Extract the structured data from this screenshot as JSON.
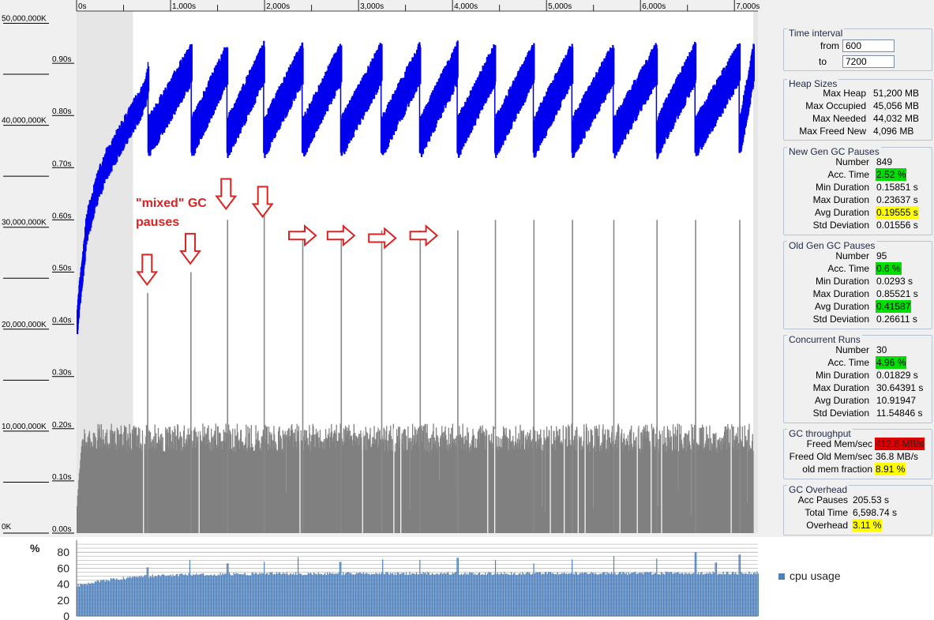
{
  "chart_data": [
    {
      "type": "area",
      "title": "",
      "x_ticks": [
        "0s",
        "1,000s",
        "2,000s",
        "3,000s",
        "4,000s",
        "5,000s",
        "6,000s",
        "7,000s"
      ],
      "x_tick_values": [
        0,
        1000,
        2000,
        3000,
        4000,
        5000,
        6000,
        7000
      ],
      "x_range": [
        0,
        7250
      ],
      "left_axis": {
        "labels": [
          "50,000,000K",
          "40,000,000K",
          "30,000,000K",
          "20,000,000K",
          "10,000,000K",
          "0K"
        ],
        "values": [
          50000000,
          40000000,
          30000000,
          20000000,
          10000000,
          0
        ]
      },
      "pause_axis": {
        "labels": [
          "0.90s",
          "0.80s",
          "0.70s",
          "0.60s",
          "0.50s",
          "0.40s",
          "0.30s",
          "0.20s",
          "0.10s",
          "0.00s"
        ],
        "values": [
          0.9,
          0.8,
          0.7,
          0.6,
          0.5,
          0.4,
          0.3,
          0.2,
          0.1,
          0
        ]
      },
      "time_interval_shading": {
        "from": 600,
        "to": 7200
      },
      "series": [
        {
          "name": "heap used (sawtooth)",
          "color": "#0000ee",
          "range": [
            0,
            51200000
          ],
          "peak_value": 46200000,
          "trough_value": 38800000,
          "ramp_points": [
            [
              0,
              21000000
            ],
            [
              100,
              30000000
            ],
            [
              200,
              33500000
            ],
            [
              300,
              36000000
            ],
            [
              450,
              38500000
            ],
            [
              600,
              41000000
            ],
            [
              700,
              42500000
            ],
            [
              760,
              44500000
            ]
          ],
          "cycle_troughs_s": [
            760,
            1220,
            1600,
            1990,
            2400,
            2810,
            3240,
            3650,
            4050,
            4450,
            4860,
            5270,
            5710,
            6170,
            6580,
            7050
          ],
          "end_s": 7200
        },
        {
          "name": "gc pause durations",
          "color": "#808080",
          "range": [
            0,
            0.9
          ],
          "base_level_s": 0.19,
          "ramp_start_s": 0.05
        },
        {
          "name": "old gen gc pauses",
          "color": "#808080",
          "x": [
            750,
            1210,
            1600,
            1990,
            2400,
            2810,
            3240,
            3650,
            4050,
            4450,
            4860,
            5270,
            5710,
            6170,
            6580,
            7050
          ],
          "values": [
            0.46,
            0.5,
            0.6,
            0.61,
            0.58,
            0.58,
            0.58,
            0.58,
            0.58,
            0.6,
            0.6,
            0.6,
            0.6,
            0.6,
            0.6,
            0.6
          ]
        }
      ],
      "annotations": [
        {
          "text": "\"mixed\" GC\npauses",
          "color": "#dd2222"
        },
        {
          "symbol": "down-arrow",
          "x": 750,
          "y": 0.47,
          "color": "#dd2222"
        },
        {
          "symbol": "down-arrow",
          "x": 1210,
          "y": 0.51,
          "color": "#dd2222"
        },
        {
          "symbol": "down-arrow",
          "x": 1590,
          "y": 0.615,
          "color": "#dd2222"
        },
        {
          "symbol": "down-arrow",
          "x": 1980,
          "y": 0.6,
          "color": "#dd2222"
        },
        {
          "symbol": "right-arrow",
          "x": 2260,
          "y": 0.57,
          "color": "#dd2222"
        },
        {
          "symbol": "right-arrow",
          "x": 2670,
          "y": 0.57,
          "color": "#dd2222"
        },
        {
          "symbol": "right-arrow",
          "x": 3110,
          "y": 0.565,
          "color": "#dd2222"
        },
        {
          "symbol": "right-arrow",
          "x": 3550,
          "y": 0.57,
          "color": "#dd2222"
        }
      ]
    },
    {
      "type": "bar",
      "title": "",
      "ylabel": "%",
      "y_ticks": [
        0,
        20,
        40,
        60,
        80
      ],
      "ylim": [
        0,
        95
      ],
      "legend": "cpu usage",
      "color": "#4f81bd",
      "x_range": [
        0,
        7250
      ],
      "base_points": [
        [
          0,
          38
        ],
        [
          300,
          45
        ],
        [
          700,
          50
        ],
        [
          1200,
          52
        ],
        [
          2000,
          53
        ],
        [
          7250,
          54
        ]
      ],
      "spikes": [
        [
          750,
          61
        ],
        [
          1200,
          70
        ],
        [
          1600,
          66
        ],
        [
          1990,
          68
        ],
        [
          2350,
          74
        ],
        [
          2800,
          68
        ],
        [
          3250,
          71
        ],
        [
          3650,
          70
        ],
        [
          4050,
          73
        ],
        [
          4450,
          70
        ],
        [
          4860,
          66
        ],
        [
          5270,
          71
        ],
        [
          5710,
          75
        ],
        [
          6170,
          72
        ],
        [
          6580,
          80
        ],
        [
          6800,
          67
        ],
        [
          7050,
          77
        ]
      ]
    }
  ],
  "side_panel": {
    "time_interval": {
      "title": "Time interval",
      "from_label": "from",
      "from_value": "600",
      "to_label": "to",
      "to_value": "7200"
    },
    "heap_sizes": {
      "title": "Heap Sizes",
      "rows": [
        {
          "label": "Max Heap",
          "value": "51,200 MB"
        },
        {
          "label": "Max Occupied",
          "value": "45,056 MB"
        },
        {
          "label": "Max Needed",
          "value": "44,032 MB"
        },
        {
          "label": "Max Freed New",
          "value": "4,096 MB"
        }
      ]
    },
    "new_gen": {
      "title": "New Gen GC Pauses",
      "rows": [
        {
          "label": "Number",
          "value": "849"
        },
        {
          "label": "Acc. Time",
          "value": "2.52 %",
          "highlight": "green"
        },
        {
          "label": "Min Duration",
          "value": "0.15851 s"
        },
        {
          "label": "Max Duration",
          "value": "0.23637 s"
        },
        {
          "label": "Avg Duration",
          "value": "0.19555 s",
          "highlight": "yellow"
        },
        {
          "label": "Std Deviation",
          "value": "0.01556 s"
        }
      ]
    },
    "old_gen": {
      "title": "Old Gen GC Pauses",
      "rows": [
        {
          "label": "Number",
          "value": "95"
        },
        {
          "label": "Acc. Time",
          "value": "0.6 %",
          "highlight": "green"
        },
        {
          "label": "Min Duration",
          "value": "0.0293 s"
        },
        {
          "label": "Max Duration",
          "value": "0.85521 s"
        },
        {
          "label": "Avg Duration",
          "value": "0.41587",
          "highlight": "green"
        },
        {
          "label": "Std Deviation",
          "value": "0.26611 s"
        }
      ]
    },
    "concurrent": {
      "title": "Concurrent Runs",
      "rows": [
        {
          "label": "Number",
          "value": "30"
        },
        {
          "label": "Acc. Time",
          "value": "4.96 %",
          "highlight": "green"
        },
        {
          "label": "Min Duration",
          "value": "0.01829 s"
        },
        {
          "label": "Max Duration",
          "value": "30.64391 s"
        },
        {
          "label": "Avg Duration",
          "value": "10.91947"
        },
        {
          "label": "Std Deviation",
          "value": "11.54846 s"
        }
      ]
    },
    "throughput": {
      "title": "GC throughput",
      "rows": [
        {
          "label": "Freed Mem/sec",
          "value": "412.8 MB/s",
          "highlight": "red"
        },
        {
          "label": "Freed Old Mem/sec",
          "value": "36.8 MB/s"
        },
        {
          "label": "old mem fraction",
          "value": "8.91 %",
          "highlight": "yellow"
        }
      ]
    },
    "overhead": {
      "title": "GC Overhead",
      "rows": [
        {
          "label": "Acc Pauses",
          "value": "205.53 s"
        },
        {
          "label": "Total Time",
          "value": "6,598.74 s"
        },
        {
          "label": "Overhead",
          "value": "3.11 %",
          "highlight": "yellow"
        }
      ]
    }
  }
}
